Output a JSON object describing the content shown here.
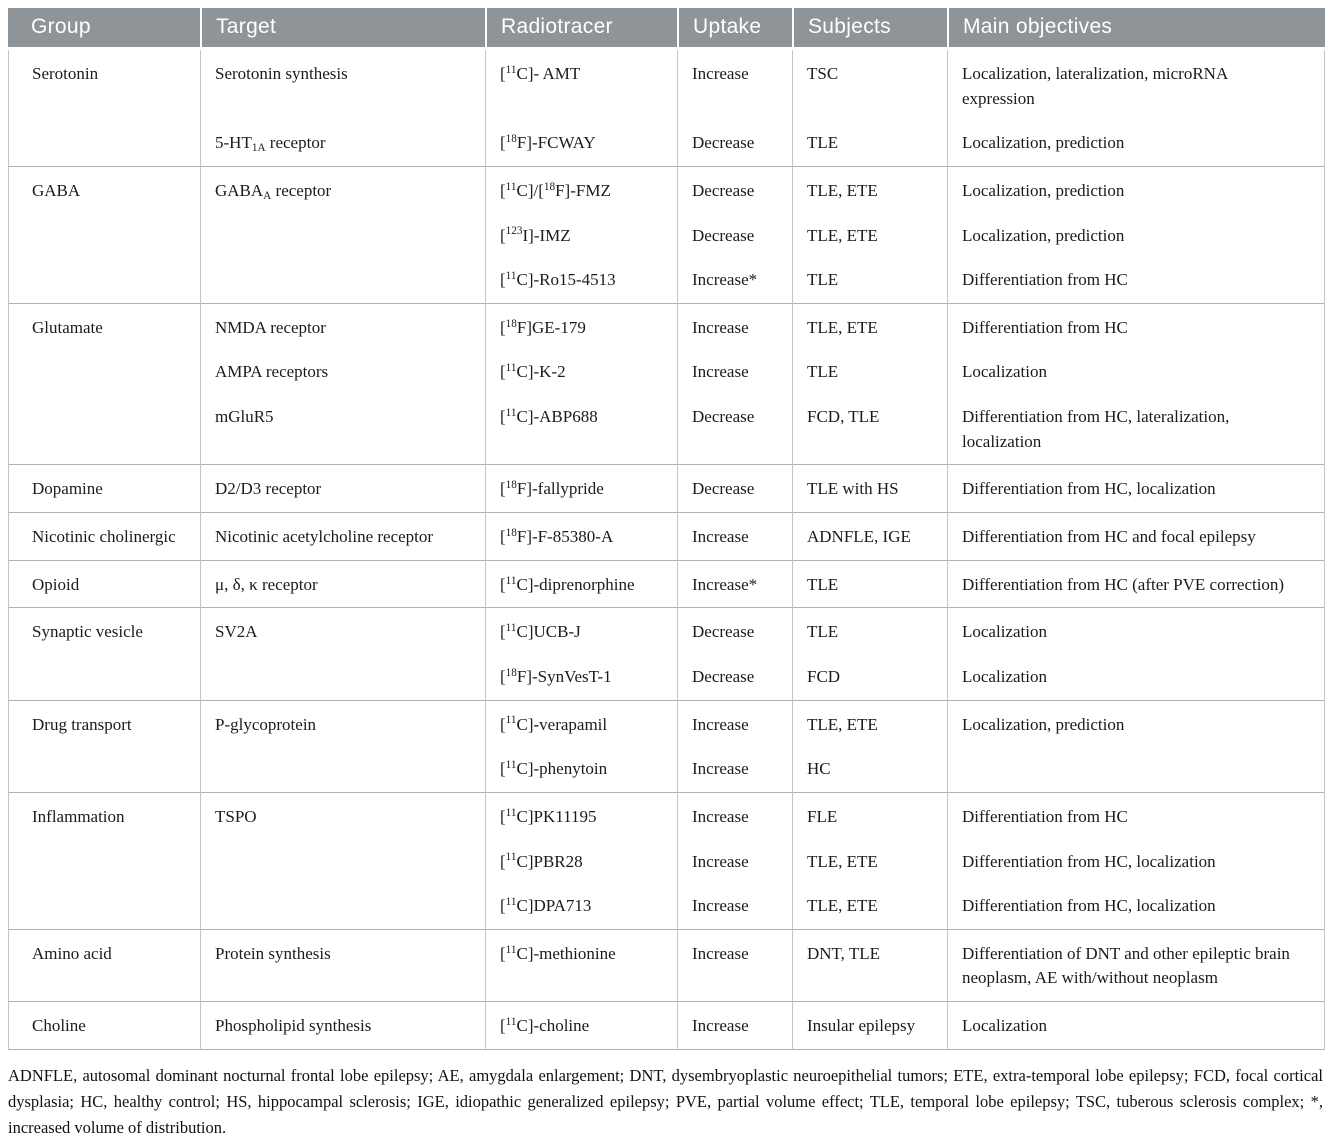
{
  "header": {
    "columns": [
      {
        "label": "Group"
      },
      {
        "label": "Target"
      },
      {
        "label": "Radiotracer"
      },
      {
        "label": "Uptake"
      },
      {
        "label": "Subjects"
      },
      {
        "label": "Main objectives"
      }
    ],
    "bg_color": "#8f9499",
    "text_color": "#ffffff"
  },
  "groups": [
    {
      "group": "Serotonin",
      "rows": [
        {
          "target": "Serotonin synthesis",
          "radiotracer": "[^11^C]- AMT",
          "uptake": "Increase",
          "subjects": "TSC",
          "objectives": "Localization, lateralization, microRNA expression"
        },
        {
          "target": "5-HT~1A~ receptor",
          "radiotracer": "[^18^F]-FCWAY",
          "uptake": "Decrease",
          "subjects": "TLE",
          "objectives": "Localization, prediction"
        }
      ]
    },
    {
      "group": "GABA",
      "rows": [
        {
          "target": "GABA~A~ receptor",
          "radiotracer": "[^11^C]/[^18^F]-FMZ",
          "uptake": "Decrease",
          "subjects": "TLE, ETE",
          "objectives": "Localization, prediction"
        },
        {
          "target": "",
          "radiotracer": "[^123^I]-IMZ",
          "uptake": "Decrease",
          "subjects": "TLE, ETE",
          "objectives": "Localization, prediction"
        },
        {
          "target": "",
          "radiotracer": "[^11^C]-Ro15-4513",
          "uptake": "Increase*",
          "subjects": "TLE",
          "objectives": "Differentiation from HC"
        }
      ]
    },
    {
      "group": "Glutamate",
      "rows": [
        {
          "target": "NMDA receptor",
          "radiotracer": "[^18^F]GE-179",
          "uptake": "Increase",
          "subjects": "TLE, ETE",
          "objectives": "Differentiation from HC"
        },
        {
          "target": "AMPA receptors",
          "radiotracer": "[^11^C]-K-2",
          "uptake": "Increase",
          "subjects": "TLE",
          "objectives": "Localization"
        },
        {
          "target": "mGluR5",
          "radiotracer": "[^11^C]-ABP688",
          "uptake": "Decrease",
          "subjects": "FCD, TLE",
          "objectives": "Differentiation from HC, lateralization, localization"
        }
      ]
    },
    {
      "group": "Dopamine",
      "rows": [
        {
          "target": "D2/D3 receptor",
          "radiotracer": "[^18^F]-fallypride",
          "uptake": "Decrease",
          "subjects": "TLE with HS",
          "objectives": "Differentiation from HC, localization"
        }
      ]
    },
    {
      "group": "Nicotinic cholinergic",
      "rows": [
        {
          "target": "Nicotinic acetylcholine receptor",
          "radiotracer": "[^18^F]-F-85380-A",
          "uptake": "Increase",
          "subjects": "ADNFLE, IGE",
          "objectives": "Differentiation from HC and focal epilepsy"
        }
      ]
    },
    {
      "group": "Opioid",
      "rows": [
        {
          "target": "μ, δ, κ receptor",
          "radiotracer": "[^11^C]-diprenorphine",
          "uptake": "Increase*",
          "subjects": "TLE",
          "objectives": "Differentiation from HC (after PVE correction)"
        }
      ]
    },
    {
      "group": "Synaptic vesicle",
      "rows": [
        {
          "target": "SV2A",
          "radiotracer": "[^11^C]UCB-J",
          "uptake": "Decrease",
          "subjects": "TLE",
          "objectives": "Localization"
        },
        {
          "target": "",
          "radiotracer": "[^18^F]-SynVesT-1",
          "uptake": "Decrease",
          "subjects": "FCD",
          "objectives": "Localization"
        }
      ]
    },
    {
      "group": "Drug transport",
      "rows": [
        {
          "target": "P-glycoprotein",
          "radiotracer": "[^11^C]-verapamil",
          "uptake": "Increase",
          "subjects": "TLE, ETE",
          "objectives": "Localization, prediction"
        },
        {
          "target": "",
          "radiotracer": "[^11^C]-phenytoin",
          "uptake": "Increase",
          "subjects": "HC",
          "objectives": ""
        }
      ]
    },
    {
      "group": "Inflammation",
      "rows": [
        {
          "target": "TSPO",
          "radiotracer": "[^11^C]PK11195",
          "uptake": "Increase",
          "subjects": "FLE",
          "objectives": "Differentiation from HC"
        },
        {
          "target": "",
          "radiotracer": "[^11^C]PBR28",
          "uptake": "Increase",
          "subjects": "TLE, ETE",
          "objectives": "Differentiation from HC, localization"
        },
        {
          "target": "",
          "radiotracer": "[^11^C]DPA713",
          "uptake": "Increase",
          "subjects": "TLE, ETE",
          "objectives": "Differentiation from HC, localization"
        }
      ]
    },
    {
      "group": "Amino acid",
      "rows": [
        {
          "target": "Protein synthesis",
          "radiotracer": "[^11^C]-methionine",
          "uptake": "Increase",
          "subjects": "DNT, TLE",
          "objectives": "Differentiation of DNT and other epileptic brain neoplasm, AE with/without neoplasm"
        }
      ]
    },
    {
      "group": "Choline",
      "rows": [
        {
          "target": "Phospholipid synthesis",
          "radiotracer": "[^11^C]-choline",
          "uptake": "Increase",
          "subjects": "Insular epilepsy",
          "objectives": "Localization"
        }
      ]
    }
  ],
  "footnote": "ADNFLE, autosomal dominant nocturnal frontal lobe epilepsy; AE, amygdala enlargement; DNT, dysembryoplastic neuroepithelial tumors; ETE, extra-temporal lobe epilepsy; FCD, focal cortical dysplasia; HC, healthy control; HS, hippocampal sclerosis; IGE, idiopathic generalized epilepsy; PVE, partial volume effect; TLE, temporal lobe epilepsy; TSC, tuberous sclerosis complex; *, increased volume of distribution."
}
